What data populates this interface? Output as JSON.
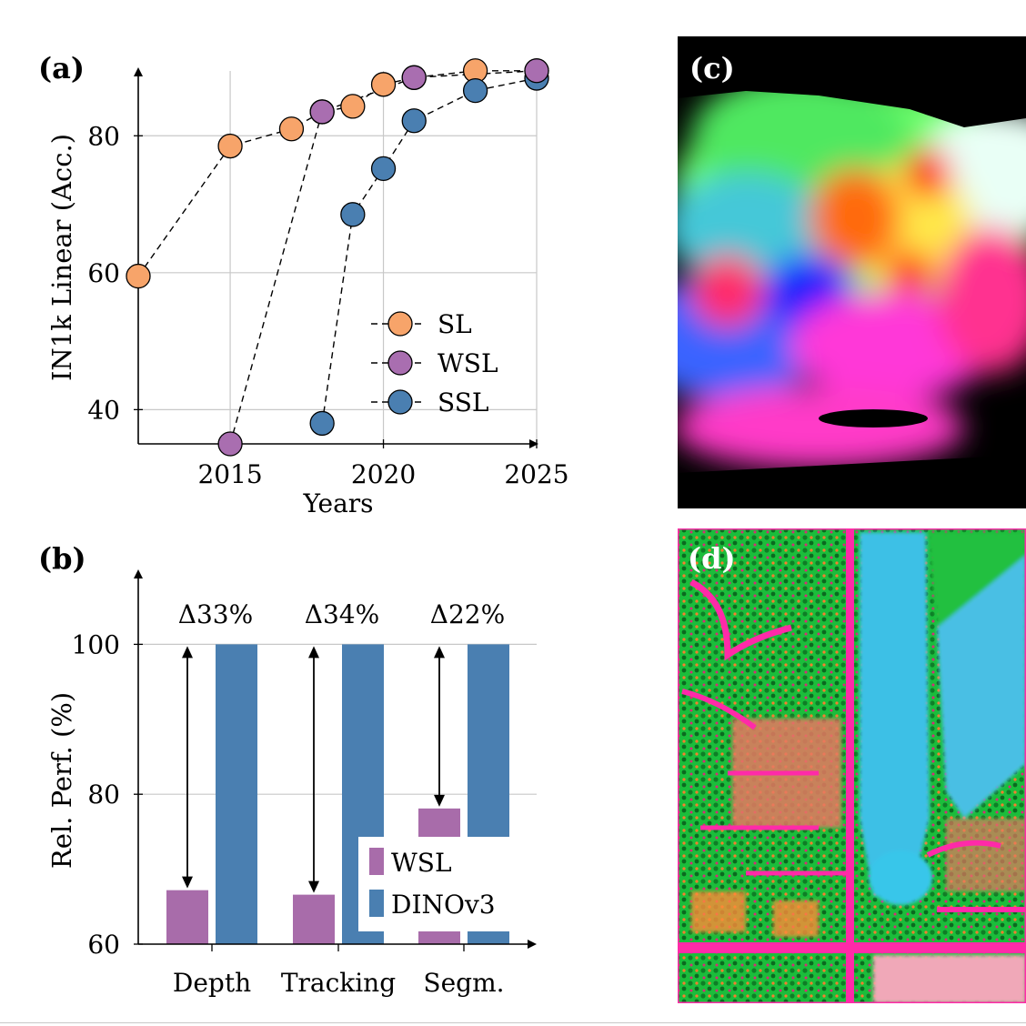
{
  "panel_labels": {
    "a": "(a)",
    "b": "(b)",
    "c": "(c)",
    "d": "(d)"
  },
  "colors": {
    "sl": "#f7a46a",
    "wsl": "#a96eb0",
    "ssl": "#4a7fb1",
    "wsl_bar": "#a86caa",
    "dino_bar": "#4a7fb1",
    "grid": "#c8c8c8",
    "axis": "#000000"
  },
  "images": {
    "c": {
      "name": "dog-feature-map-image"
    },
    "d": {
      "name": "aerial-feature-map-image"
    }
  },
  "chart_data": [
    {
      "panel": "a",
      "type": "scatter",
      "xlabel": "Years",
      "ylabel": "IN1k Linear (Acc.)",
      "xlim": [
        2012,
        2025
      ],
      "ylim": [
        35,
        90
      ],
      "xticks": [
        2015,
        2020,
        2025
      ],
      "xtick_labels": [
        "2015",
        "2020",
        "2025"
      ],
      "yticks": [
        40,
        60,
        80
      ],
      "ytick_labels": [
        "40",
        "60",
        "80"
      ],
      "grid": true,
      "legend_position": "center-right",
      "series": [
        {
          "key": "sl",
          "name": "SL",
          "connected": "dashed",
          "x": [
            2012,
            2015,
            2017,
            2018,
            2019,
            2020,
            2021,
            2023,
            2025
          ],
          "y": [
            59.5,
            78.5,
            81,
            83.5,
            84.3,
            87.5,
            88.5,
            89.5,
            89.5
          ]
        },
        {
          "key": "wsl",
          "name": "WSL",
          "connected": "dashed",
          "x": [
            2015,
            2018,
            2021,
            2025
          ],
          "y": [
            35,
            83.5,
            88.5,
            89.5
          ]
        },
        {
          "key": "ssl",
          "name": "SSL",
          "connected": "dashed",
          "x": [
            2018,
            2019,
            2020,
            2021,
            2023,
            2025
          ],
          "y": [
            38,
            68.5,
            75.2,
            82.2,
            86.6,
            88.4
          ]
        }
      ]
    },
    {
      "panel": "b",
      "type": "bar",
      "xlabel": "",
      "ylabel": "Rel. Perf. (%)",
      "ylim": [
        60,
        110
      ],
      "yticks": [
        60,
        80,
        100
      ],
      "ytick_labels": [
        "60",
        "80",
        "100"
      ],
      "grid": true,
      "legend_position": "bottom-right",
      "categories": [
        "Depth",
        "Tracking",
        "Segm."
      ],
      "series": [
        {
          "key": "wsl_bar",
          "name": "WSL",
          "values": [
            67.2,
            66.6,
            78.1
          ]
        },
        {
          "key": "dino_bar",
          "name": "DINOv3",
          "values": [
            100,
            100,
            100
          ]
        }
      ],
      "annotations": [
        "Δ33%",
        "Δ34%",
        "Δ22%"
      ]
    }
  ]
}
